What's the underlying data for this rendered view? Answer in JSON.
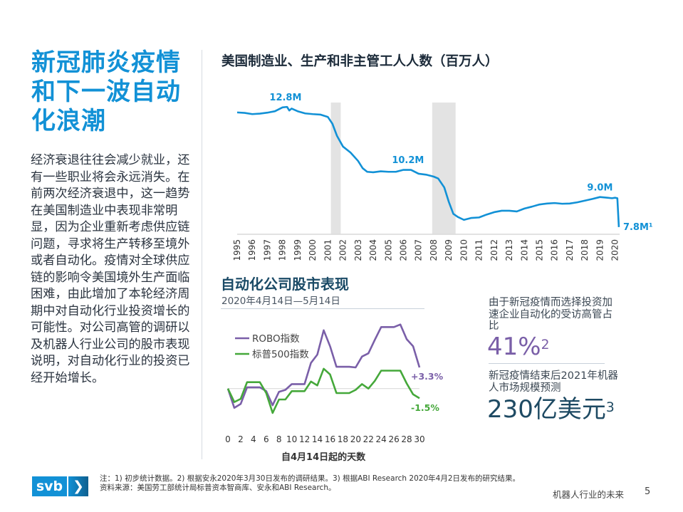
{
  "left": {
    "title_lines": [
      "新冠肺炎疫情",
      "和下一波自动",
      "化浪潮"
    ],
    "body": "经济衰退往往会减少就业，还有一些职业将会永远消失。在前两次经济衰退中，这一趋势在美国制造业中表现非常明显，因为企业重新考虑供应链问题，寻求将生产转移至境外或者自动化。疫情对全球供应链的影响令美国境外生产面临困难，由此增加了本轮经济周期中对自动化行业投资增长的可能性。对公司高管的调研以及机器人行业公司的股市表现说明，对自动化行业的投资已经开始增长。"
  },
  "chart_data": [
    {
      "type": "line",
      "title": "美国制造业、生产和非主管工人人数（百万人）",
      "x_ticks": [
        "1995",
        "1996",
        "1997",
        "1998",
        "1999",
        "2000",
        "2001",
        "2002",
        "2003",
        "2004",
        "2005",
        "2006",
        "2007",
        "2008",
        "2009",
        "2010",
        "2011",
        "2012",
        "2013",
        "2014",
        "2015",
        "2016",
        "2017",
        "2018",
        "2019",
        "2020"
      ],
      "xlim": [
        1995,
        2020.3
      ],
      "ylim": [
        7.5,
        13.1
      ],
      "color": "#1291d6",
      "recessions": [
        [
          2001.2,
          2001.85
        ],
        [
          2007.9,
          2009.45
        ]
      ],
      "x": [
        1995,
        1995.5,
        1996,
        1996.5,
        1997,
        1997.5,
        1998,
        1998.3,
        1998.45,
        1998.6,
        1999,
        1999.5,
        2000,
        2000.5,
        2001,
        2001.3,
        2001.6,
        2002,
        2002.5,
        2003,
        2003.3,
        2003.6,
        2004,
        2004.5,
        2005,
        2005.5,
        2006,
        2006.5,
        2007,
        2007.5,
        2008,
        2008.3,
        2008.7,
        2009,
        2009.3,
        2009.6,
        2010,
        2010.5,
        2011,
        2011.5,
        2012,
        2012.5,
        2013,
        2013.5,
        2014,
        2014.5,
        2015,
        2015.5,
        2016,
        2016.5,
        2017,
        2017.5,
        2018,
        2018.5,
        2019,
        2019.5,
        2019.8,
        2020,
        2020.15,
        2020.25
      ],
      "values": [
        12.57,
        12.55,
        12.5,
        12.52,
        12.56,
        12.62,
        12.78,
        12.8,
        12.65,
        12.73,
        12.62,
        12.53,
        12.5,
        12.48,
        12.38,
        12.1,
        11.6,
        11.15,
        10.9,
        10.55,
        10.25,
        10.1,
        10.08,
        10.12,
        10.1,
        10.1,
        10.18,
        10.18,
        10.02,
        9.98,
        9.9,
        9.82,
        9.45,
        8.85,
        8.35,
        8.22,
        8.1,
        8.18,
        8.2,
        8.32,
        8.42,
        8.48,
        8.48,
        8.45,
        8.57,
        8.65,
        8.74,
        8.78,
        8.8,
        8.77,
        8.78,
        8.83,
        8.9,
        8.97,
        9.05,
        9.02,
        9.0,
        9.02,
        9.0,
        7.8
      ],
      "annotations": [
        {
          "label": "12.8M",
          "x": 1998.2,
          "y": 12.8
        },
        {
          "label": "10.2M",
          "x": 2006.3,
          "y": 10.2
        },
        {
          "label": "9.0M",
          "x": 2019,
          "y": 9.05
        },
        {
          "label": "7.8M¹",
          "x": 2020.25,
          "y": 7.8
        }
      ]
    },
    {
      "type": "line",
      "title": "自动化公司股市表现",
      "subtitle": "2020年4月14日—5月14日",
      "xlabel": "自4月14日起的天数",
      "x_ticks": [
        0,
        2,
        4,
        6,
        8,
        10,
        12,
        14,
        16,
        18,
        20,
        22,
        24,
        26,
        28,
        30
      ],
      "xlim": [
        0,
        30
      ],
      "ylim": [
        -6,
        12
      ],
      "series": [
        {
          "name": "ROBO指数",
          "color": "#7a5fa8",
          "end_label": "+3.3%",
          "values": [
            0,
            -3,
            -2.4,
            0.2,
            0.2,
            0.2,
            -0.4,
            -2.6,
            -0.5,
            -0.2,
            0.7,
            0.7,
            0.7,
            4.0,
            5.3,
            9.1,
            6.6,
            3.4,
            3.4,
            3.4,
            3.3,
            5.0,
            5.5,
            7.6,
            9.6,
            9.6,
            9.6,
            10.0,
            7.7,
            6.6,
            3.3
          ]
        },
        {
          "name": "标普500指数",
          "color": "#45a83a",
          "end_label": "-1.5%",
          "values": [
            0,
            -2.1,
            -1.6,
            1.0,
            1.0,
            1.0,
            -0.7,
            -3.8,
            -1.7,
            -1.7,
            -0.4,
            -0.4,
            -0.4,
            1.1,
            0.5,
            3.1,
            2.2,
            -0.7,
            -0.7,
            -0.7,
            -0.2,
            0.7,
            0,
            1.2,
            2.8,
            2.8,
            2.8,
            2.8,
            0.8,
            -0.9,
            -1.5
          ]
        }
      ]
    }
  ],
  "stats": {
    "stat1_text": "由于新冠疫情而选择投资加速企业自动化的受访高管占比",
    "stat1_value": "41%",
    "stat1_note": "2",
    "stat2_text": "新冠疫情结束后2021年机器人市场规模预测",
    "stat2_value": "230亿美元",
    "stat2_note": "3"
  },
  "footer": {
    "logo_text": "svb",
    "logo_arrow": "❯",
    "note_line1": "注：1) 初步统计数据。2) 根据安永2020年3月30日发布的调研结果。3) 根据ABI Research 2020年4月2日发布的研究结果。",
    "note_line2": "资料来源：美国劳工部统计局标普资本智商库、安永和ABI Research。",
    "title": "机器人行业的未来",
    "page": "5"
  }
}
